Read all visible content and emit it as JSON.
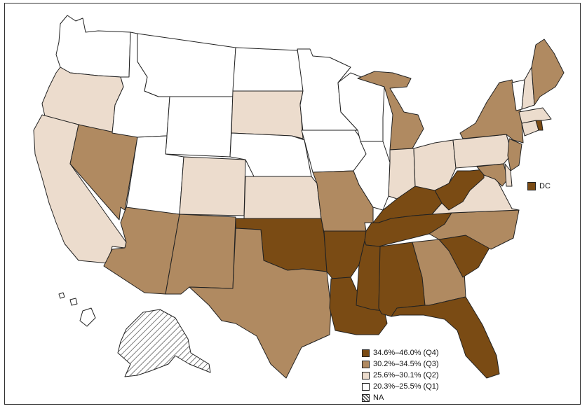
{
  "colors": {
    "Q4": "#7a4b14",
    "Q3": "#b08a61",
    "Q2": "#ecdccd",
    "Q1": "#ffffff",
    "NA": "hatched"
  },
  "legend": [
    {
      "key": "Q4",
      "label": "34.6%–46.0% (Q4)"
    },
    {
      "key": "Q3",
      "label": "30.2%–34.5% (Q3)"
    },
    {
      "key": "Q2",
      "label": "25.6%–30.1% (Q2)"
    },
    {
      "key": "Q1",
      "label": "20.3%–25.5% (Q1)"
    },
    {
      "key": "NA",
      "label": "NA"
    }
  ],
  "dc_label": "DC",
  "states": {
    "WA": "Q1",
    "OR": "Q2",
    "CA": "Q2",
    "NV": "Q3",
    "ID": "Q1",
    "MT": "Q1",
    "WY": "Q1",
    "UT": "Q1",
    "AZ": "Q3",
    "CO": "Q2",
    "NM": "Q3",
    "ND": "Q1",
    "SD": "Q2",
    "NE": "Q1",
    "KS": "Q2",
    "OK": "Q4",
    "TX": "Q3",
    "MN": "Q1",
    "IA": "Q1",
    "MO": "Q3",
    "AR": "Q4",
    "LA": "Q4",
    "WI": "Q1",
    "IL": "Q1",
    "MI": "Q3",
    "IN": "Q2",
    "OH": "Q2",
    "KY": "Q4",
    "TN": "Q4",
    "MS": "Q4",
    "AL": "Q4",
    "GA": "Q3",
    "FL": "Q4",
    "SC": "Q4",
    "NC": "Q3",
    "VA": "Q2",
    "WV": "Q4",
    "PA": "Q2",
    "NY": "Q3",
    "NJ": "Q3",
    "DE": "Q2",
    "MD": "Q3",
    "CT": "Q2",
    "RI": "Q4",
    "MA": "Q2",
    "VT": "Q1",
    "NH": "Q2",
    "ME": "Q3",
    "AK": "NA",
    "HI": "Q1",
    "DC": "Q4"
  }
}
